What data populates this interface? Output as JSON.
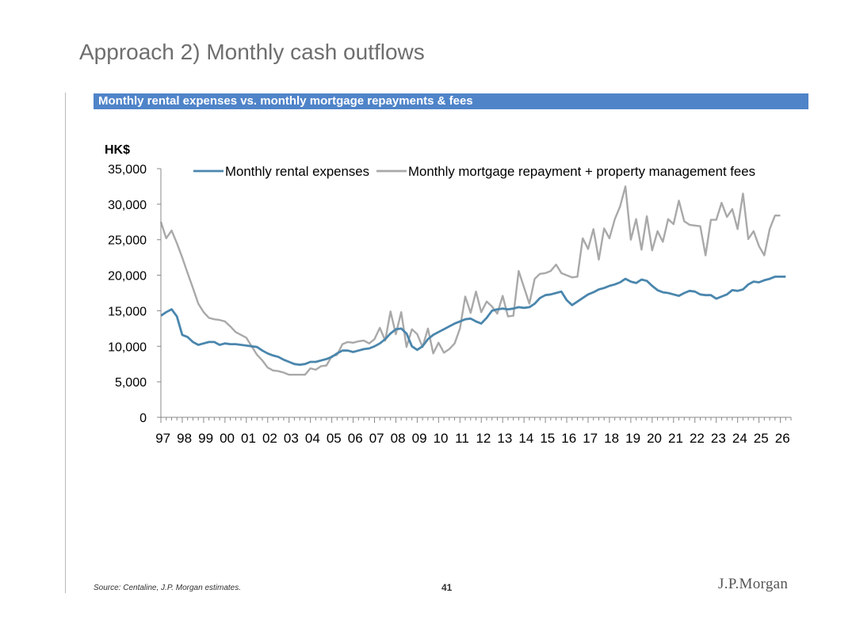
{
  "page": {
    "title": "Approach 2) Monthly cash outflows",
    "banner": "Monthly rental expenses vs. monthly mortgage repayments & fees",
    "source": "Source: Centaline, J.P. Morgan estimates.",
    "page_number": "41",
    "logo": "J.P.Morgan"
  },
  "chart_data": {
    "type": "line",
    "title": "",
    "unit_label": "HK$",
    "xlabel": "",
    "ylabel": "",
    "x_tick_labels": [
      "97",
      "98",
      "99",
      "00",
      "01",
      "02",
      "03",
      "04",
      "05",
      "06",
      "07",
      "08",
      "09",
      "10",
      "11",
      "12",
      "13",
      "14",
      "15",
      "16",
      "17",
      "18",
      "19",
      "20",
      "21",
      "22",
      "23",
      "24",
      "25",
      "26"
    ],
    "x_range": [
      1997,
      2026.5
    ],
    "ylim": [
      0,
      35000
    ],
    "y_ticks": [
      0,
      5000,
      10000,
      15000,
      20000,
      25000,
      30000,
      35000
    ],
    "y_tick_labels": [
      "0",
      "5,000",
      "10,000",
      "15,000",
      "20,000",
      "25,000",
      "30,000",
      "35,000"
    ],
    "grid": false,
    "legend_position": "top",
    "series": [
      {
        "name": "Monthly rental expenses",
        "color": "#4a86ad",
        "points": [
          [
            1997.0,
            14300
          ],
          [
            1997.25,
            14800
          ],
          [
            1997.5,
            15200
          ],
          [
            1997.75,
            14200
          ],
          [
            1998.0,
            11600
          ],
          [
            1998.25,
            11300
          ],
          [
            1998.5,
            10600
          ],
          [
            1998.75,
            10200
          ],
          [
            1999.0,
            10400
          ],
          [
            1999.25,
            10600
          ],
          [
            1999.5,
            10600
          ],
          [
            1999.75,
            10200
          ],
          [
            2000.0,
            10400
          ],
          [
            2000.25,
            10300
          ],
          [
            2000.5,
            10300
          ],
          [
            2000.75,
            10200
          ],
          [
            2001.0,
            10100
          ],
          [
            2001.25,
            10000
          ],
          [
            2001.5,
            9900
          ],
          [
            2001.75,
            9400
          ],
          [
            2002.0,
            9000
          ],
          [
            2002.25,
            8700
          ],
          [
            2002.5,
            8500
          ],
          [
            2002.75,
            8100
          ],
          [
            2003.0,
            7800
          ],
          [
            2003.25,
            7500
          ],
          [
            2003.5,
            7400
          ],
          [
            2003.75,
            7500
          ],
          [
            2004.0,
            7800
          ],
          [
            2004.25,
            7800
          ],
          [
            2004.5,
            8000
          ],
          [
            2004.75,
            8200
          ],
          [
            2005.0,
            8500
          ],
          [
            2005.25,
            9000
          ],
          [
            2005.5,
            9400
          ],
          [
            2005.75,
            9400
          ],
          [
            2006.0,
            9200
          ],
          [
            2006.25,
            9400
          ],
          [
            2006.5,
            9600
          ],
          [
            2006.75,
            9700
          ],
          [
            2007.0,
            10000
          ],
          [
            2007.25,
            10400
          ],
          [
            2007.5,
            11000
          ],
          [
            2007.75,
            11800
          ],
          [
            2008.0,
            12400
          ],
          [
            2008.25,
            12500
          ],
          [
            2008.5,
            11800
          ],
          [
            2008.75,
            10000
          ],
          [
            2009.0,
            9500
          ],
          [
            2009.25,
            10000
          ],
          [
            2009.5,
            11000
          ],
          [
            2009.75,
            11600
          ],
          [
            2010.0,
            12000
          ],
          [
            2010.25,
            12400
          ],
          [
            2010.5,
            12800
          ],
          [
            2010.75,
            13200
          ],
          [
            2011.0,
            13500
          ],
          [
            2011.25,
            13800
          ],
          [
            2011.5,
            13900
          ],
          [
            2011.75,
            13500
          ],
          [
            2012.0,
            13200
          ],
          [
            2012.25,
            14000
          ],
          [
            2012.5,
            15000
          ],
          [
            2012.75,
            15200
          ],
          [
            2013.0,
            15300
          ],
          [
            2013.25,
            15200
          ],
          [
            2013.5,
            15300
          ],
          [
            2013.75,
            15500
          ],
          [
            2014.0,
            15400
          ],
          [
            2014.25,
            15500
          ],
          [
            2014.5,
            16000
          ],
          [
            2014.75,
            16800
          ],
          [
            2015.0,
            17200
          ],
          [
            2015.25,
            17300
          ],
          [
            2015.5,
            17500
          ],
          [
            2015.75,
            17700
          ],
          [
            2016.0,
            16500
          ],
          [
            2016.25,
            15800
          ],
          [
            2016.5,
            16300
          ],
          [
            2016.75,
            16800
          ],
          [
            2017.0,
            17300
          ],
          [
            2017.25,
            17600
          ],
          [
            2017.5,
            18000
          ],
          [
            2017.75,
            18200
          ],
          [
            2018.0,
            18500
          ],
          [
            2018.25,
            18700
          ],
          [
            2018.5,
            19000
          ],
          [
            2018.75,
            19500
          ],
          [
            2019.0,
            19100
          ],
          [
            2019.25,
            18900
          ],
          [
            2019.5,
            19400
          ],
          [
            2019.75,
            19200
          ],
          [
            2020.0,
            18500
          ],
          [
            2020.25,
            17900
          ],
          [
            2020.5,
            17600
          ],
          [
            2020.75,
            17500
          ],
          [
            2021.0,
            17300
          ],
          [
            2021.25,
            17100
          ],
          [
            2021.5,
            17500
          ],
          [
            2021.75,
            17800
          ],
          [
            2022.0,
            17700
          ],
          [
            2022.25,
            17300
          ],
          [
            2022.5,
            17200
          ],
          [
            2022.75,
            17200
          ],
          [
            2023.0,
            16700
          ],
          [
            2023.25,
            17000
          ],
          [
            2023.5,
            17300
          ],
          [
            2023.75,
            17900
          ],
          [
            2024.0,
            17800
          ],
          [
            2024.25,
            18000
          ],
          [
            2024.5,
            18700
          ],
          [
            2024.75,
            19100
          ],
          [
            2025.0,
            19000
          ],
          [
            2025.25,
            19300
          ],
          [
            2025.5,
            19500
          ],
          [
            2025.75,
            19800
          ],
          [
            2026.0,
            19800
          ],
          [
            2026.25,
            19800
          ]
        ]
      },
      {
        "name": "Monthly mortgage repayment + property management fees",
        "color": "#a9a9a9",
        "points": [
          [
            1997.0,
            27500
          ],
          [
            1997.25,
            25200
          ],
          [
            1997.5,
            26300
          ],
          [
            1997.75,
            24500
          ],
          [
            1998.0,
            22500
          ],
          [
            1998.25,
            20300
          ],
          [
            1998.5,
            18200
          ],
          [
            1998.75,
            16000
          ],
          [
            1999.0,
            14800
          ],
          [
            1999.25,
            14000
          ],
          [
            1999.5,
            13800
          ],
          [
            1999.75,
            13700
          ],
          [
            2000.0,
            13500
          ],
          [
            2000.25,
            12800
          ],
          [
            2000.5,
            12000
          ],
          [
            2000.75,
            11600
          ],
          [
            2001.0,
            11200
          ],
          [
            2001.25,
            10000
          ],
          [
            2001.5,
            8800
          ],
          [
            2001.75,
            8000
          ],
          [
            2002.0,
            7000
          ],
          [
            2002.25,
            6600
          ],
          [
            2002.5,
            6500
          ],
          [
            2002.75,
            6300
          ],
          [
            2003.0,
            6000
          ],
          [
            2003.25,
            6000
          ],
          [
            2003.5,
            6000
          ],
          [
            2003.75,
            6000
          ],
          [
            2004.0,
            6900
          ],
          [
            2004.25,
            6700
          ],
          [
            2004.5,
            7200
          ],
          [
            2004.75,
            7300
          ],
          [
            2005.0,
            8600
          ],
          [
            2005.25,
            8800
          ],
          [
            2005.5,
            10300
          ],
          [
            2005.75,
            10600
          ],
          [
            2006.0,
            10500
          ],
          [
            2006.25,
            10700
          ],
          [
            2006.5,
            10800
          ],
          [
            2006.75,
            10400
          ],
          [
            2007.0,
            11000
          ],
          [
            2007.25,
            12600
          ],
          [
            2007.5,
            10800
          ],
          [
            2007.75,
            14900
          ],
          [
            2008.0,
            11700
          ],
          [
            2008.25,
            14800
          ],
          [
            2008.5,
            9900
          ],
          [
            2008.75,
            12400
          ],
          [
            2009.0,
            11700
          ],
          [
            2009.25,
            9900
          ],
          [
            2009.5,
            12500
          ],
          [
            2009.75,
            9000
          ],
          [
            2010.0,
            10500
          ],
          [
            2010.25,
            9100
          ],
          [
            2010.5,
            9600
          ],
          [
            2010.75,
            10400
          ],
          [
            2011.0,
            12500
          ],
          [
            2011.25,
            17000
          ],
          [
            2011.5,
            14700
          ],
          [
            2011.75,
            17700
          ],
          [
            2012.0,
            14800
          ],
          [
            2012.25,
            16300
          ],
          [
            2012.5,
            15600
          ],
          [
            2012.75,
            14600
          ],
          [
            2013.0,
            17100
          ],
          [
            2013.25,
            14200
          ],
          [
            2013.5,
            14300
          ],
          [
            2013.75,
            20600
          ],
          [
            2014.0,
            18300
          ],
          [
            2014.25,
            16000
          ],
          [
            2014.5,
            19500
          ],
          [
            2014.75,
            20200
          ],
          [
            2015.0,
            20300
          ],
          [
            2015.25,
            20600
          ],
          [
            2015.5,
            21500
          ],
          [
            2015.75,
            20300
          ],
          [
            2016.0,
            20000
          ],
          [
            2016.25,
            19700
          ],
          [
            2016.5,
            19800
          ],
          [
            2016.75,
            25200
          ],
          [
            2017.0,
            23700
          ],
          [
            2017.25,
            26500
          ],
          [
            2017.5,
            22200
          ],
          [
            2017.75,
            26600
          ],
          [
            2018.0,
            25200
          ],
          [
            2018.25,
            27900
          ],
          [
            2018.5,
            29700
          ],
          [
            2018.75,
            32500
          ],
          [
            2019.0,
            25000
          ],
          [
            2019.25,
            27900
          ],
          [
            2019.5,
            23600
          ],
          [
            2019.75,
            28300
          ],
          [
            2020.0,
            23500
          ],
          [
            2020.25,
            26200
          ],
          [
            2020.5,
            24700
          ],
          [
            2020.75,
            27900
          ],
          [
            2021.0,
            27200
          ],
          [
            2021.25,
            30500
          ],
          [
            2021.5,
            27600
          ],
          [
            2021.75,
            27100
          ],
          [
            2022.0,
            27000
          ],
          [
            2022.25,
            26900
          ],
          [
            2022.5,
            22800
          ],
          [
            2022.75,
            27800
          ],
          [
            2023.0,
            27800
          ],
          [
            2023.25,
            30200
          ],
          [
            2023.5,
            28200
          ],
          [
            2023.75,
            29300
          ],
          [
            2024.0,
            26500
          ],
          [
            2024.25,
            31500
          ],
          [
            2024.5,
            25100
          ],
          [
            2024.75,
            26200
          ],
          [
            2025.0,
            24100
          ],
          [
            2025.25,
            22800
          ],
          [
            2025.5,
            26500
          ],
          [
            2025.75,
            28400
          ],
          [
            2026.0,
            28400
          ]
        ]
      }
    ]
  }
}
